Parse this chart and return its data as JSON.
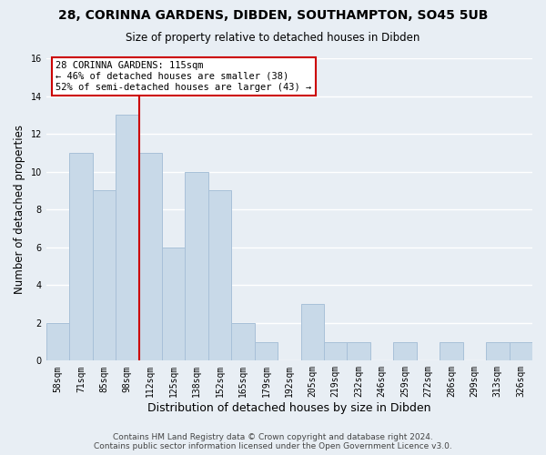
{
  "title": "28, CORINNA GARDENS, DIBDEN, SOUTHAMPTON, SO45 5UB",
  "subtitle": "Size of property relative to detached houses in Dibden",
  "xlabel": "Distribution of detached houses by size in Dibden",
  "ylabel": "Number of detached properties",
  "footer_line1": "Contains HM Land Registry data © Crown copyright and database right 2024.",
  "footer_line2": "Contains public sector information licensed under the Open Government Licence v3.0.",
  "bin_labels": [
    "58sqm",
    "71sqm",
    "85sqm",
    "98sqm",
    "112sqm",
    "125sqm",
    "138sqm",
    "152sqm",
    "165sqm",
    "179sqm",
    "192sqm",
    "205sqm",
    "219sqm",
    "232sqm",
    "246sqm",
    "259sqm",
    "272sqm",
    "286sqm",
    "299sqm",
    "313sqm",
    "326sqm"
  ],
  "bar_heights": [
    2,
    11,
    9,
    13,
    11,
    6,
    10,
    9,
    2,
    1,
    0,
    3,
    1,
    1,
    0,
    1,
    0,
    1,
    0,
    1,
    1
  ],
  "bar_color": "#c8d9e8",
  "bar_edge_color": "#a8c0d8",
  "reference_line_value": 3.5,
  "reference_line_color": "#cc0000",
  "annotation_title": "28 CORINNA GARDENS: 115sqm",
  "annotation_line2": "← 46% of detached houses are smaller (38)",
  "annotation_line3": "52% of semi-detached houses are larger (43) →",
  "annotation_box_facecolor": "#ffffff",
  "annotation_box_edgecolor": "#cc0000",
  "ylim": [
    0,
    16
  ],
  "yticks": [
    0,
    2,
    4,
    6,
    8,
    10,
    12,
    14,
    16
  ],
  "background_color": "#e8eef4",
  "grid_color": "#ffffff",
  "title_fontsize": 10,
  "subtitle_fontsize": 8.5,
  "xlabel_fontsize": 9,
  "ylabel_fontsize": 8.5,
  "tick_fontsize": 7,
  "footer_fontsize": 6.5
}
